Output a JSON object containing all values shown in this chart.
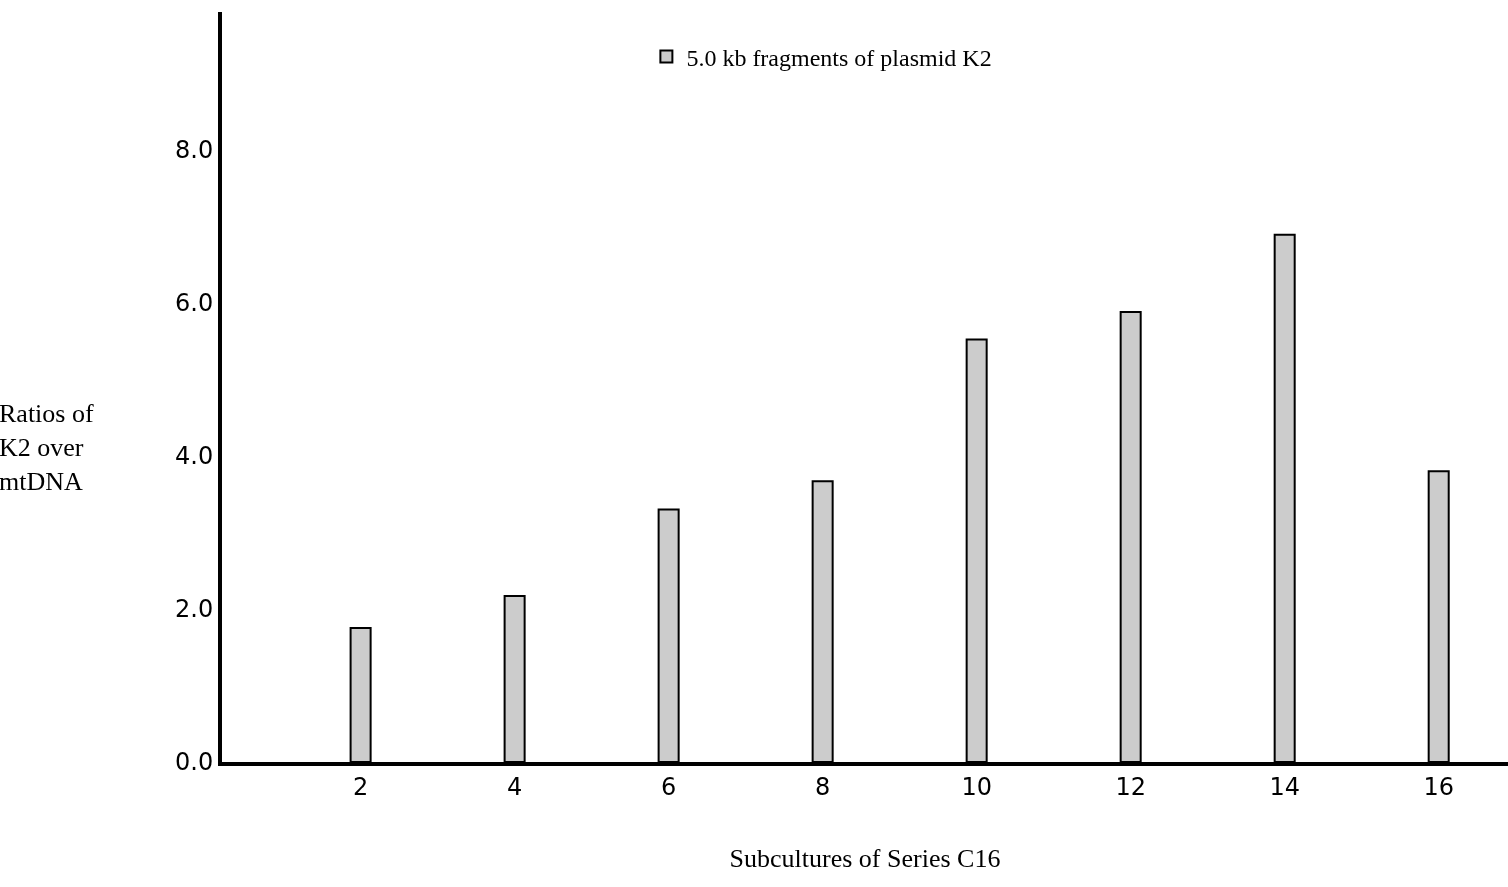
{
  "chart_data": {
    "type": "bar",
    "xlabel": "Subcultures of Series C16",
    "ylabel": "Ratios of\nK2 over\nmtDNA",
    "x": [
      2,
      4,
      6,
      8,
      10,
      12,
      14,
      16
    ],
    "xlim": [
      0.2,
      16.9
    ],
    "xticks": [
      2,
      4,
      6,
      8,
      10,
      12,
      14,
      16
    ],
    "ylim": [
      0,
      9.8
    ],
    "yticks": [
      {
        "value": 0,
        "label": "0.0"
      },
      {
        "value": 2,
        "label": "2.0"
      },
      {
        "value": 4,
        "label": "4.0"
      },
      {
        "value": 6,
        "label": "6.0"
      },
      {
        "value": 8,
        "label": "8.0"
      }
    ],
    "series": [
      {
        "name": "5.0 kb fragments of plasmid K2",
        "color": "#cccccc",
        "values": [
          1.75,
          2.17,
          3.3,
          3.67,
          5.52,
          5.88,
          6.89,
          3.8
        ]
      }
    ],
    "grid": false,
    "legend": "top"
  }
}
